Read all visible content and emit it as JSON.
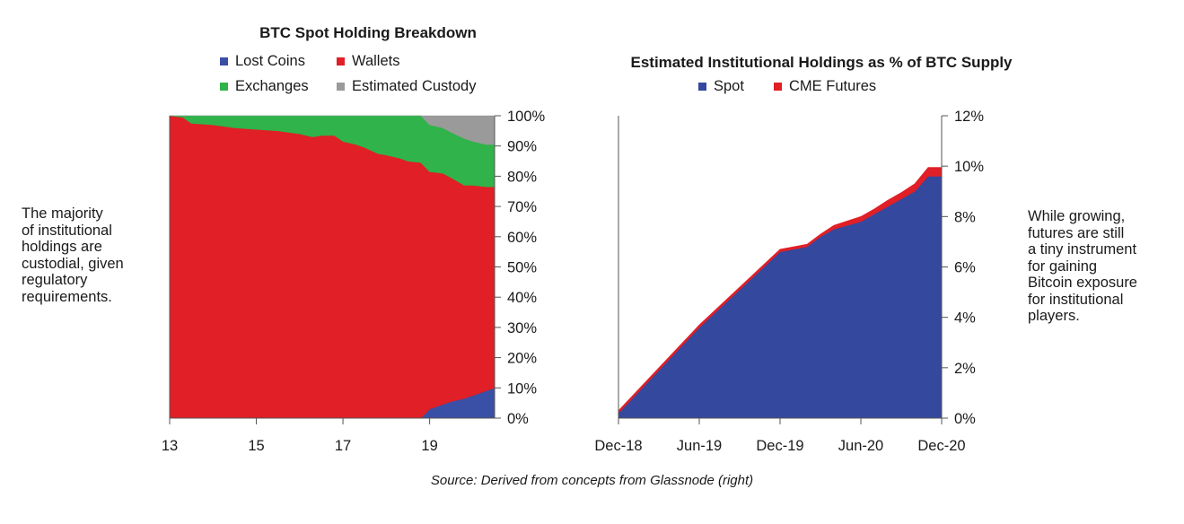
{
  "notes": {
    "left": "The majority\nof institutional\nholdings are\ncustodial, given\nregulatory\nrequirements.",
    "right": "While growing,\nfutures are still\na tiny instrument\nfor gaining\nBitcoin exposure\nfor institutional\nplayers."
  },
  "source": "Source: Derived from concepts from Glassnode (right)",
  "colors": {
    "lost": "#3a4fa6",
    "wallets": "#e01f26",
    "exchanges": "#2fb34a",
    "custody": "#9a9a9a",
    "spot": "#34489e",
    "cme": "#e01f26"
  },
  "chart_data": [
    {
      "type": "area",
      "stacked": true,
      "normalized_percent": true,
      "title": "BTC Spot Holding Breakdown",
      "xlim": [
        13,
        20.5
      ],
      "x_ticks": [
        "13",
        "15",
        "17",
        "19"
      ],
      "y_ticks": [
        "0%",
        "10%",
        "20%",
        "30%",
        "40%",
        "50%",
        "60%",
        "70%",
        "80%",
        "90%",
        "100%"
      ],
      "ylim": [
        0,
        100
      ],
      "y_axis_side": "right",
      "grid": false,
      "legend": "top",
      "x": [
        13,
        13.3,
        13.5,
        14,
        14.5,
        15,
        15.5,
        16,
        16.3,
        16.5,
        16.8,
        17,
        17.3,
        17.5,
        17.8,
        18,
        18.3,
        18.5,
        18.8,
        19,
        19.3,
        19.5,
        19.8,
        20,
        20.3,
        20.5
      ],
      "series": [
        {
          "name": "Lost Coins",
          "values": [
            0,
            0,
            0,
            0,
            0,
            0,
            0,
            0,
            0,
            0,
            0,
            0,
            0,
            0,
            0,
            0,
            0,
            0,
            0,
            3,
            4.5,
            5.5,
            6.5,
            7.5,
            9,
            10
          ]
        },
        {
          "name": "Wallets",
          "values": [
            100,
            99.5,
            97.5,
            97,
            96,
            95.5,
            95,
            94,
            93,
            93.5,
            93.5,
            91.5,
            90.5,
            89.5,
            87.5,
            87,
            86,
            85,
            84.5,
            78.5,
            76.5,
            74,
            70.5,
            69.5,
            67.5,
            66.5
          ]
        },
        {
          "name": "Exchanges",
          "values": [
            0,
            0.5,
            2.5,
            3,
            4,
            4.5,
            5,
            6,
            7,
            6.5,
            6.5,
            8.5,
            9.5,
            10.5,
            12.5,
            13,
            14,
            15,
            15.5,
            15.5,
            15,
            15,
            15.5,
            14.5,
            14,
            14
          ]
        },
        {
          "name": "Estimated Custody",
          "values": [
            0,
            0,
            0,
            0,
            0,
            0,
            0,
            0,
            0,
            0,
            0,
            0,
            0,
            0,
            0,
            0,
            0,
            0,
            0,
            3,
            4,
            5.5,
            7.5,
            8.5,
            9.5,
            9.5
          ]
        }
      ]
    },
    {
      "type": "area",
      "stacked": true,
      "title": "Estimated Institutional Holdings as % of BTC Supply",
      "x": [
        "Dec-18",
        "Mar-19",
        "Jun-19",
        "Sep-19",
        "Dec-19",
        "Feb-20",
        "Mar-20",
        "Apr-20",
        "Jun-20",
        "Jul-20",
        "Aug-20",
        "Sep-20",
        "Oct-20",
        "Nov-20",
        "Dec-20"
      ],
      "x_ticks": [
        "Dec-18",
        "Jun-19",
        "Dec-19",
        "Jun-20",
        "Dec-20"
      ],
      "y_ticks": [
        "0%",
        "2%",
        "4%",
        "6%",
        "8%",
        "10%",
        "12%"
      ],
      "ylim": [
        0,
        12
      ],
      "y_axis_side": "right",
      "grid": false,
      "legend": "top",
      "series": [
        {
          "name": "Spot",
          "values": [
            0.2,
            1.9,
            3.6,
            5.1,
            6.6,
            6.8,
            7.2,
            7.5,
            7.8,
            8.1,
            8.4,
            8.7,
            9.0,
            9.6,
            9.6
          ]
        },
        {
          "name": "CME Futures",
          "values": [
            0.1,
            0.1,
            0.1,
            0.1,
            0.1,
            0.1,
            0.1,
            0.15,
            0.2,
            0.2,
            0.25,
            0.25,
            0.3,
            0.35,
            0.35
          ]
        }
      ]
    }
  ]
}
